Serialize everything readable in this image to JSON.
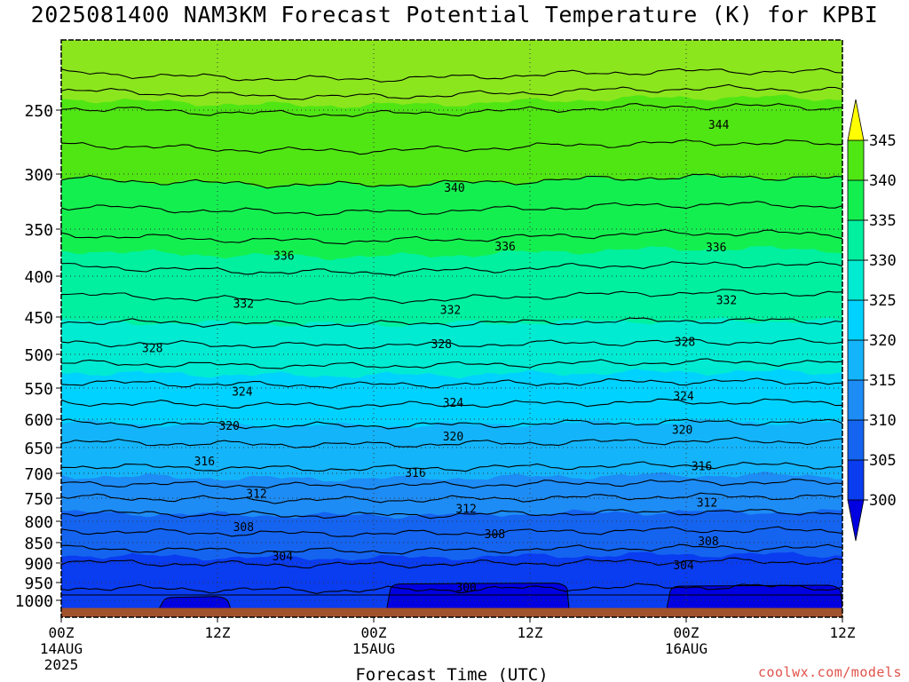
{
  "title": "2025081400 NAM3KM Forecast Potential Temperature (K) for KPBI",
  "credit": "coolwx.com/models",
  "colors": {
    "credit": "#e0524a",
    "ground": "#a0522d"
  },
  "chart_data": {
    "type": "heatmap",
    "title": "2025081400 NAM3KM Forecast Potential Temperature (K) for KPBI",
    "xlabel": "Forecast Time (UTC)",
    "ylabel": "",
    "x_range_hours": [
      0,
      60
    ],
    "y_range_hPa": [
      1025,
      200
    ],
    "y_axis": "pressure (inverted, log-like spacing)",
    "grid": "dotted",
    "y_ticks": [
      250,
      300,
      350,
      400,
      450,
      500,
      550,
      600,
      650,
      700,
      750,
      800,
      850,
      900,
      950,
      1000
    ],
    "x_ticks": [
      {
        "hour": 0,
        "lines": [
          "00Z",
          "14AUG",
          "2025"
        ]
      },
      {
        "hour": 12,
        "lines": [
          "12Z"
        ]
      },
      {
        "hour": 24,
        "lines": [
          "00Z",
          "15AUG"
        ]
      },
      {
        "hour": 36,
        "lines": [
          "12Z"
        ]
      },
      {
        "hour": 48,
        "lines": [
          "00Z",
          "16AUG"
        ]
      },
      {
        "hour": 60,
        "lines": [
          "12Z"
        ]
      }
    ],
    "colorbar": {
      "levels": [
        300,
        305,
        310,
        315,
        320,
        325,
        330,
        335,
        340,
        345
      ],
      "fills": [
        "#0000e0",
        "#0a3cf0",
        "#1464f0",
        "#1e8cf5",
        "#14b4fa",
        "#00d2ff",
        "#00ebd2",
        "#00f0a0",
        "#14ef50",
        "#50e614",
        "#8ce61e",
        "#c8f514",
        "#ffff00"
      ],
      "extend": "both"
    },
    "isotherms_K": [
      300,
      302,
      304,
      306,
      308,
      310,
      312,
      314,
      316,
      318,
      320,
      322,
      324,
      326,
      328,
      330,
      332,
      334,
      336,
      338,
      340,
      342,
      344,
      346,
      348
    ],
    "profile": [
      {
        "p": 1000,
        "theta": 301
      },
      {
        "p": 950,
        "theta": 302.5
      },
      {
        "p": 900,
        "theta": 304
      },
      {
        "p": 850,
        "theta": 307
      },
      {
        "p": 800,
        "theta": 309
      },
      {
        "p": 750,
        "theta": 312
      },
      {
        "p": 700,
        "theta": 315.5
      },
      {
        "p": 650,
        "theta": 317.5
      },
      {
        "p": 600,
        "theta": 320.5
      },
      {
        "p": 550,
        "theta": 323.5
      },
      {
        "p": 500,
        "theta": 327
      },
      {
        "p": 450,
        "theta": 330.5
      },
      {
        "p": 400,
        "theta": 333.5
      },
      {
        "p": 350,
        "theta": 336.5
      },
      {
        "p": 300,
        "theta": 340.5
      },
      {
        "p": 250,
        "theta": 344
      },
      {
        "p": 200,
        "theta": 352
      }
    ],
    "contour_labels": [
      {
        "value": "344",
        "hour": 50.5,
        "p": 261
      },
      {
        "value": "340",
        "hour": 30.2,
        "p": 312
      },
      {
        "value": "336",
        "hour": 17.1,
        "p": 378
      },
      {
        "value": "336",
        "hour": 34.1,
        "p": 368
      },
      {
        "value": "336",
        "hour": 50.3,
        "p": 369
      },
      {
        "value": "332",
        "hour": 14.0,
        "p": 433
      },
      {
        "value": "332",
        "hour": 29.9,
        "p": 441
      },
      {
        "value": "332",
        "hour": 51.1,
        "p": 429
      },
      {
        "value": "328",
        "hour": 7.0,
        "p": 491
      },
      {
        "value": "328",
        "hour": 29.2,
        "p": 486
      },
      {
        "value": "328",
        "hour": 47.9,
        "p": 483
      },
      {
        "value": "324",
        "hour": 13.9,
        "p": 555
      },
      {
        "value": "324",
        "hour": 30.1,
        "p": 573
      },
      {
        "value": "324",
        "hour": 47.8,
        "p": 562
      },
      {
        "value": "320",
        "hour": 12.9,
        "p": 611
      },
      {
        "value": "320",
        "hour": 30.1,
        "p": 630
      },
      {
        "value": "320",
        "hour": 47.7,
        "p": 618
      },
      {
        "value": "316",
        "hour": 11.0,
        "p": 676
      },
      {
        "value": "316",
        "hour": 27.2,
        "p": 698
      },
      {
        "value": "316",
        "hour": 49.2,
        "p": 685
      },
      {
        "value": "312",
        "hour": 15.0,
        "p": 740
      },
      {
        "value": "312",
        "hour": 31.1,
        "p": 772
      },
      {
        "value": "312",
        "hour": 49.6,
        "p": 759
      },
      {
        "value": "308",
        "hour": 14.0,
        "p": 813
      },
      {
        "value": "308",
        "hour": 33.3,
        "p": 829
      },
      {
        "value": "308",
        "hour": 49.7,
        "p": 846
      },
      {
        "value": "304",
        "hour": 17.0,
        "p": 883
      },
      {
        "value": "304",
        "hour": 47.8,
        "p": 905
      },
      {
        "value": "300",
        "hour": 31.1,
        "p": 962
      }
    ],
    "cold_pockets": [
      {
        "value": "<300",
        "hours": [
          7.5,
          13.0
        ],
        "p_top": 992
      },
      {
        "value": "<300",
        "hours": [
          25.0,
          39.0
        ],
        "p_top": 954
      },
      {
        "value": "<300",
        "hours": [
          46.5,
          60
        ],
        "p_top": 960
      }
    ],
    "surface_hPa": 1010
  }
}
